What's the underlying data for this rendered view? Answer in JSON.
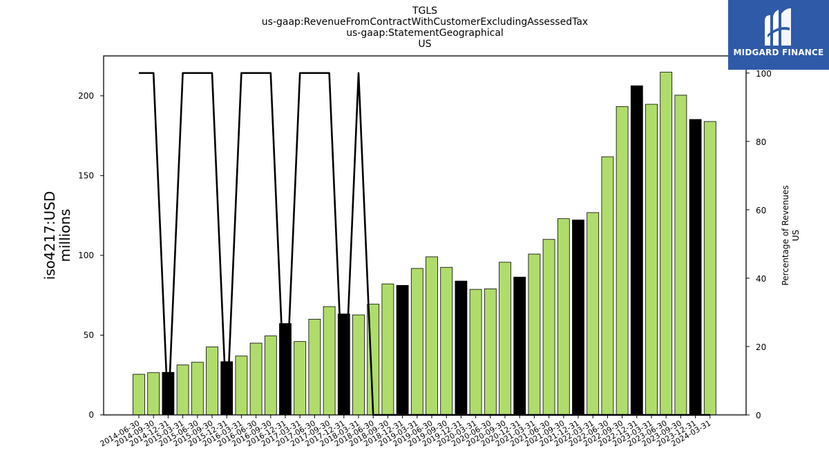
{
  "chart_data": {
    "type": "bar",
    "title_lines": [
      "TGLS",
      "us-gaap:RevenueFromContractWithCustomerExcludingAssessedTax",
      "us-gaap:StatementGeographical",
      "US"
    ],
    "ylabel_left_lines": [
      "iso4217:USD",
      "millions"
    ],
    "ylabel_right_lines": [
      "Percentage of Revenues",
      "US"
    ],
    "ylim_left": [
      0,
      225
    ],
    "ylim_right": [
      0,
      105
    ],
    "yticks_left": [
      0,
      50,
      100,
      150,
      200
    ],
    "yticks_right": [
      0,
      20,
      40,
      60,
      80,
      100
    ],
    "grid": false,
    "colors": {
      "bar_normal": "#b0dc6b",
      "bar_highlight": "#000000",
      "line": "#000000",
      "edge": "#000000"
    },
    "categories": [
      "2014-06-30",
      "2014-09-30",
      "2014-12-31",
      "2015-03-31",
      "2015-06-30",
      "2015-09-30",
      "2015-12-31",
      "2016-03-31",
      "2016-06-30",
      "2016-09-30",
      "2016-12-31",
      "2017-03-31",
      "2017-06-30",
      "2017-09-30",
      "2017-12-31",
      "2018-03-31",
      "2018-06-30",
      "2018-09-30",
      "2018-12-31",
      "2019-03-31",
      "2019-06-30",
      "2019-09-30",
      "2019-12-31",
      "2020-03-31",
      "2020-06-30",
      "2020-09-30",
      "2020-12-31",
      "2021-03-31",
      "2021-06-30",
      "2021-09-30",
      "2021-12-31",
      "2022-03-31",
      "2022-06-30",
      "2022-09-30",
      "2022-12-31",
      "2023-03-31",
      "2023-06-30",
      "2023-09-30",
      "2023-12-31",
      "2024-03-31"
    ],
    "values": [
      25.5,
      26.5,
      26.7,
      31.3,
      33.0,
      42.6,
      33.4,
      36.9,
      45.0,
      49.5,
      57.3,
      46.0,
      60.0,
      67.9,
      63.3,
      62.7,
      69.4,
      82.1,
      81.2,
      91.8,
      99.1,
      92.5,
      83.9,
      78.7,
      79.0,
      95.7,
      86.4,
      100.8,
      110.0,
      123.0,
      122.2,
      126.8,
      161.8,
      193.3,
      206.3,
      194.7,
      214.8,
      200.4,
      185.2,
      183.9
    ],
    "highlight": [
      false,
      false,
      true,
      false,
      false,
      false,
      true,
      false,
      false,
      false,
      true,
      false,
      false,
      false,
      true,
      false,
      false,
      false,
      true,
      false,
      false,
      false,
      true,
      false,
      false,
      false,
      true,
      false,
      false,
      false,
      true,
      false,
      false,
      false,
      true,
      false,
      false,
      false,
      true,
      false
    ],
    "percentage_line": [
      100,
      100,
      0,
      100,
      100,
      100,
      0,
      100,
      100,
      100,
      0,
      100,
      100,
      100,
      0,
      100,
      0,
      0,
      0,
      0,
      0,
      0,
      0,
      0,
      0,
      0,
      0,
      0,
      0,
      0,
      0,
      0,
      0,
      0,
      0,
      0,
      0,
      0,
      0,
      0
    ]
  },
  "logo": {
    "text": "MIDGARD FINANCE",
    "color": "#2f5aa8"
  }
}
